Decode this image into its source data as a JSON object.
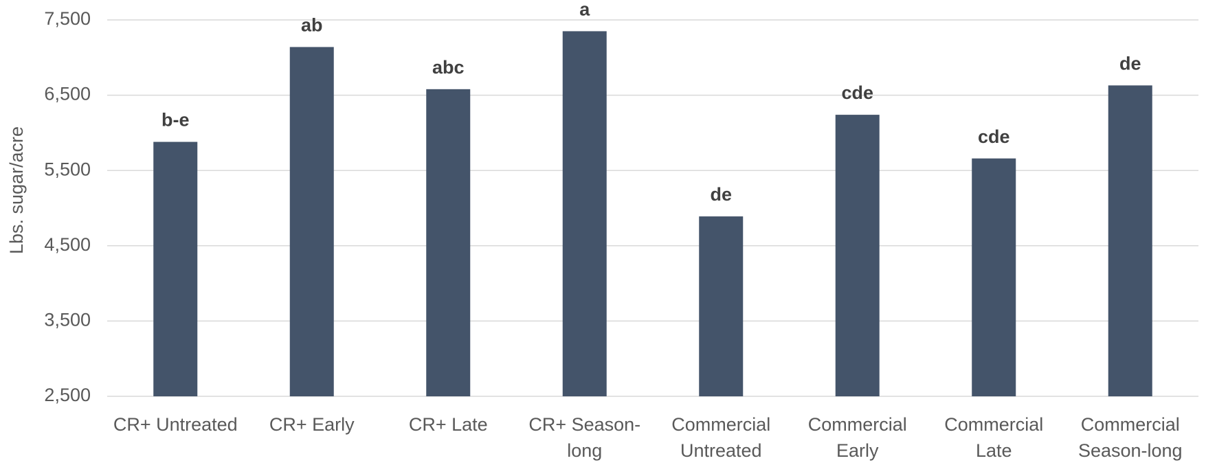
{
  "chart_data": {
    "type": "bar",
    "y_axis_label": "Lbs. sugar/acre",
    "categories": [
      "CR+ Untreated",
      "CR+ Early",
      "CR+ Late",
      "CR+ Season-long",
      "Commercial Untreated",
      "Commercial Early",
      "Commercial Late",
      "Commercial Season-long"
    ],
    "values": [
      5880,
      7140,
      6580,
      7350,
      4890,
      6240,
      5660,
      6630
    ],
    "annotations": [
      "b-e",
      "ab",
      "abc",
      "a",
      "de",
      "cde",
      "cde",
      "de"
    ],
    "color": "#44546a",
    "ylim": [
      2500,
      7500
    ],
    "yticks": [
      {
        "value": 2500,
        "label": "2,500"
      },
      {
        "value": 3500,
        "label": "3,500"
      },
      {
        "value": 4500,
        "label": "4,500"
      },
      {
        "value": 5500,
        "label": "5,500"
      },
      {
        "value": 6500,
        "label": "6,500"
      },
      {
        "value": 7500,
        "label": "7,500"
      }
    ],
    "grid": true
  }
}
